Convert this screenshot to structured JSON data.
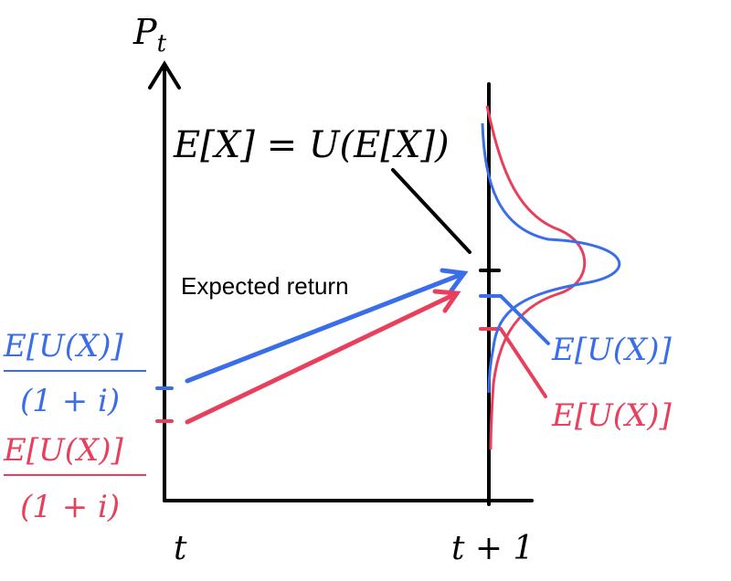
{
  "axes": {
    "y_label": "Pt",
    "x_label_t": "t",
    "x_label_t1": "t + 1"
  },
  "equation": "E[X] = U(E[X])",
  "annotation": "Expected return",
  "left_labels": {
    "blue_numerator": "E[U(X)]",
    "blue_denominator": "(1 + i)",
    "red_numerator": "E[U(X)]",
    "red_denominator": "(1 + i)"
  },
  "right_labels": {
    "blue": "E[U(X)]",
    "red": "E[U(X)]"
  },
  "colors": {
    "blue": "#3a6ee8",
    "red": "#e8405c",
    "axis": "#000000"
  }
}
